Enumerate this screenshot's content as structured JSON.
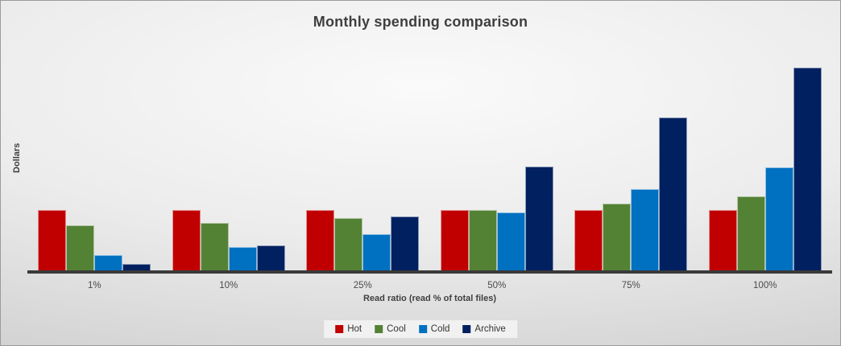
{
  "title": "Monthly spending comparison",
  "y_axis": {
    "label": "Dollars"
  },
  "x_axis": {
    "title": "Read ratio (read % of total files)"
  },
  "chart_data": {
    "type": "bar",
    "title": "Monthly spending comparison",
    "xlabel": "Read ratio (read % of total files)",
    "ylabel": "Dollars",
    "categories": [
      "1%",
      "10%",
      "25%",
      "50%",
      "75%",
      "100%"
    ],
    "series": [
      {
        "name": "Hot",
        "color": "#C00000",
        "values": [
          76,
          76,
          76,
          76,
          76,
          76
        ]
      },
      {
        "name": "Cool",
        "color": "#548235",
        "values": [
          57,
          60,
          66,
          76,
          84,
          93
        ]
      },
      {
        "name": "Cold",
        "color": "#0070C0",
        "values": [
          19,
          29,
          46,
          73,
          102,
          130
        ]
      },
      {
        "name": "Archive",
        "color": "#002060",
        "values": [
          8,
          31,
          68,
          131,
          193,
          256
        ]
      }
    ],
    "ylim": [
      0,
      289
    ],
    "grid": false,
    "y_tick_labels_visible": false,
    "legend_position": "bottom",
    "axis_line_color": "#3a3a3a",
    "background_style": "gray radial gradient"
  }
}
